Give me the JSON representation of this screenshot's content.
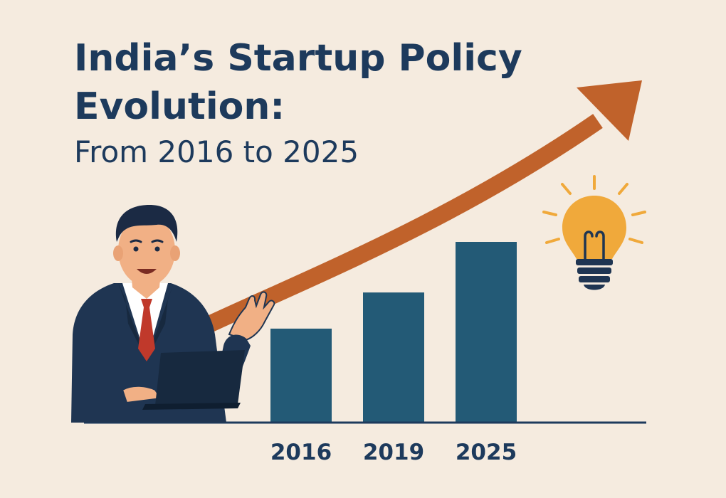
{
  "title": {
    "line1": "India’s Startup Policy",
    "line2": "Evolution:",
    "line3": "From 2016 to 2025"
  },
  "chart_data": {
    "type": "bar",
    "categories": [
      "2016",
      "2019",
      "2025"
    ],
    "values": [
      1.3,
      1.8,
      2.5
    ],
    "xlabel": "",
    "ylabel": "",
    "ylim": [
      0,
      2.5
    ],
    "grid": false,
    "bar_color": "#235a76",
    "trend_arrow_color": "#c0622b"
  },
  "colors": {
    "background": "#f5ebdf",
    "title": "#1d3a5c",
    "bar": "#235a76",
    "arrow": "#c0622b",
    "bulb": "#f0a93b",
    "suit": "#1f3552",
    "tie": "#c0392b"
  },
  "illustration": {
    "presenter": "businessman-presenting-icon",
    "laptop": "laptop-icon",
    "bulb": "lightbulb-icon"
  }
}
